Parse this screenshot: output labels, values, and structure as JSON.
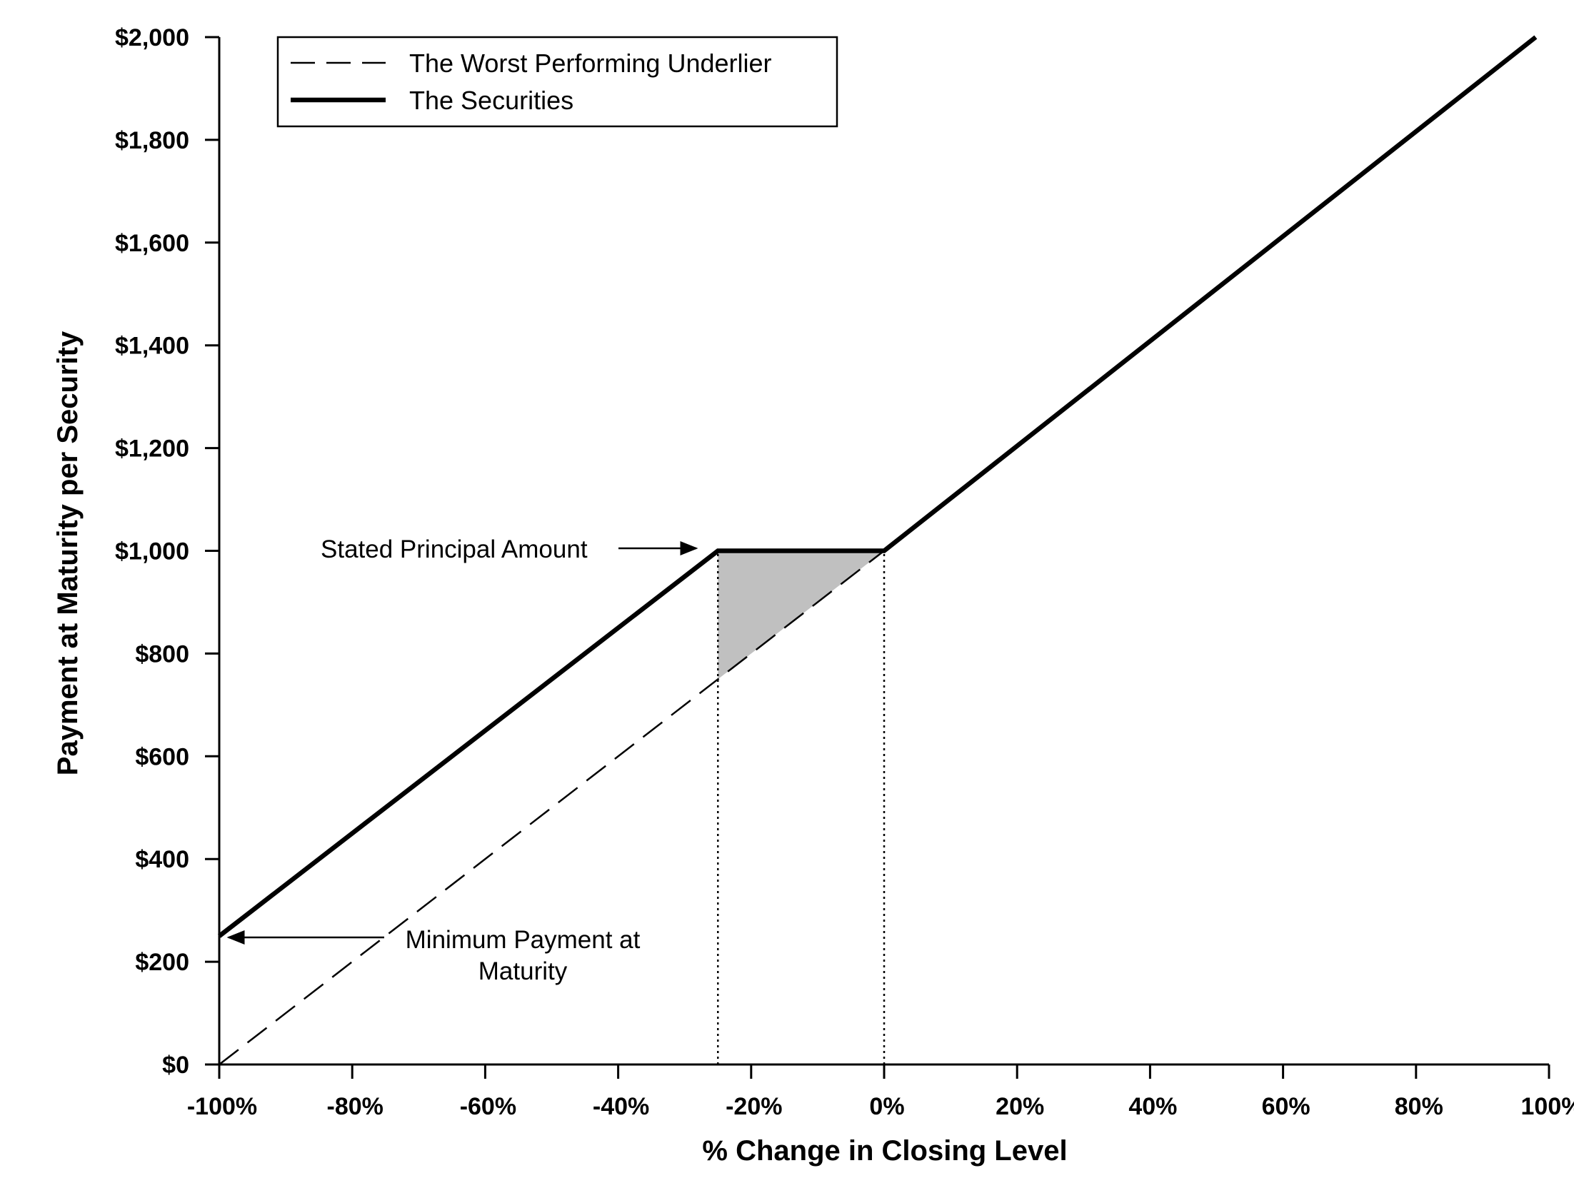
{
  "chart_data": {
    "type": "line",
    "xlabel": "% Change in Closing Level",
    "ylabel": "Payment at Maturity per Security",
    "xlim": [
      -100,
      100
    ],
    "ylim": [
      0,
      2000
    ],
    "x_ticks": [
      -100,
      -80,
      -60,
      -40,
      -20,
      0,
      20,
      40,
      60,
      80,
      100
    ],
    "x_tick_labels": [
      "-100%",
      "-80%",
      "-60%",
      "-40%",
      "-20%",
      "0%",
      "20%",
      "40%",
      "60%",
      "80%",
      "100%"
    ],
    "y_ticks": [
      0,
      200,
      400,
      600,
      800,
      1000,
      1200,
      1400,
      1600,
      1800,
      2000
    ],
    "y_tick_labels": [
      "$0",
      "$200",
      "$400",
      "$600",
      "$800",
      "$1,000",
      "$1,200",
      "$1,400",
      "$1,600",
      "$1,800",
      "$2,000"
    ],
    "legend_position": "top-left",
    "grid": false,
    "series": [
      {
        "name": "The Worst Performing Underlier",
        "style": "dashed",
        "x": [
          -100,
          0
        ],
        "y": [
          0,
          1000
        ]
      },
      {
        "name": "The Securities",
        "style": "solid-thick",
        "x": [
          -100,
          -25,
          0,
          98
        ],
        "y": [
          250,
          1000,
          1000,
          2000
        ]
      }
    ],
    "shaded_region": {
      "x": [
        -25,
        0,
        -25
      ],
      "y": [
        1000,
        1000,
        750
      ],
      "color": "#c0c0c0"
    },
    "reference_lines": [
      {
        "x": -25,
        "y_from": 0,
        "y_to": 1000,
        "style": "dotted"
      },
      {
        "x": 0,
        "y_from": 0,
        "y_to": 1000,
        "style": "dotted"
      }
    ],
    "annotations": [
      {
        "text": "Stated Principal Amount",
        "points_to": {
          "x": -27,
          "y": 1000
        }
      },
      {
        "text_lines": [
          "Minimum Payment at",
          "Maturity"
        ],
        "points_to": {
          "x": -99,
          "y": 250
        }
      }
    ]
  }
}
